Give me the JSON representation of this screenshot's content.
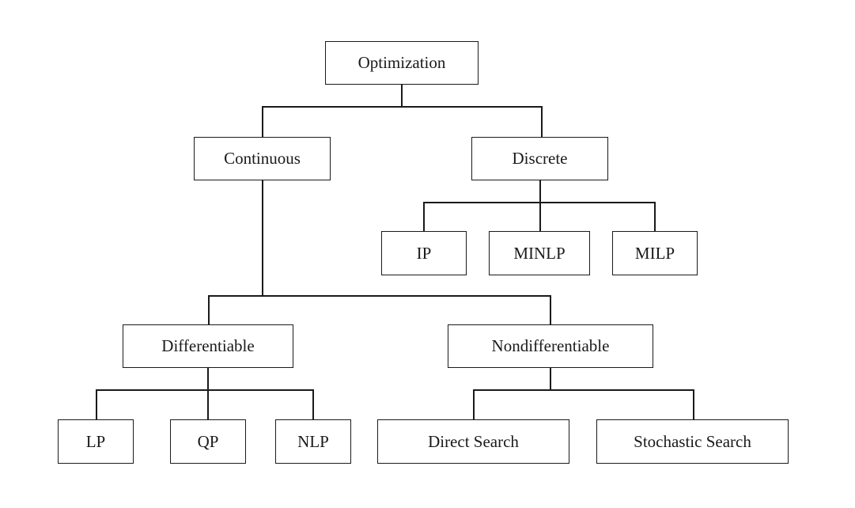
{
  "diagram": {
    "root": "Optimization",
    "level1": {
      "continuous": "Continuous",
      "discrete": "Discrete"
    },
    "discrete_children": {
      "ip": "IP",
      "minlp": "MINLP",
      "milp": "MILP"
    },
    "continuous_children": {
      "differentiable": "Differentiable",
      "nondifferentiable": "Nondifferentiable"
    },
    "differentiable_children": {
      "lp": "LP",
      "qp": "QP",
      "nlp": "NLP"
    },
    "nondifferentiable_children": {
      "direct_search": "Direct Search",
      "stochastic_search": "Stochastic Search"
    }
  }
}
